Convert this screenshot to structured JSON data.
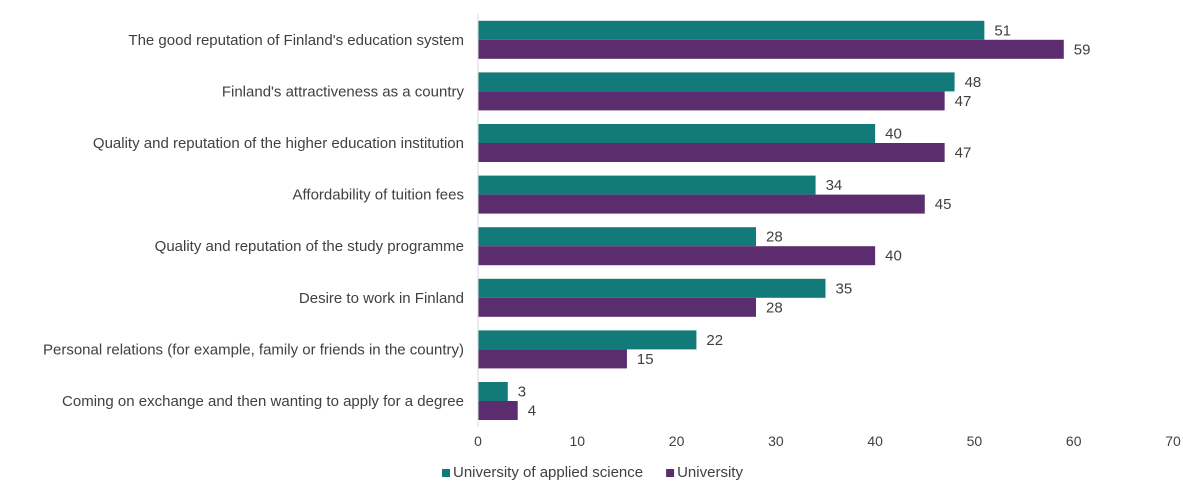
{
  "chart_data": {
    "type": "bar",
    "orientation": "horizontal",
    "title": "",
    "xlabel": "",
    "ylabel": "",
    "xlim": [
      0,
      70
    ],
    "xticks": [
      0,
      10,
      20,
      30,
      40,
      50,
      60,
      70
    ],
    "grid": false,
    "legend_position": "bottom",
    "categories": [
      "The good reputation of Finland's education system",
      "Finland's attractiveness as a country",
      "Quality and reputation of the higher education institution",
      "Affordability of tuition fees",
      "Quality and reputation of the study programme",
      "Desire to work in Finland",
      "Personal relations (for example, family or friends in the country)",
      "Coming on exchange and then wanting to apply for a degree"
    ],
    "series": [
      {
        "name": "University of applied science",
        "color": "#137a7a",
        "values": [
          51,
          48,
          40,
          34,
          28,
          35,
          22,
          3
        ]
      },
      {
        "name": "University",
        "color": "#5b2d6e",
        "values": [
          59,
          47,
          47,
          45,
          40,
          28,
          15,
          4
        ]
      }
    ]
  }
}
